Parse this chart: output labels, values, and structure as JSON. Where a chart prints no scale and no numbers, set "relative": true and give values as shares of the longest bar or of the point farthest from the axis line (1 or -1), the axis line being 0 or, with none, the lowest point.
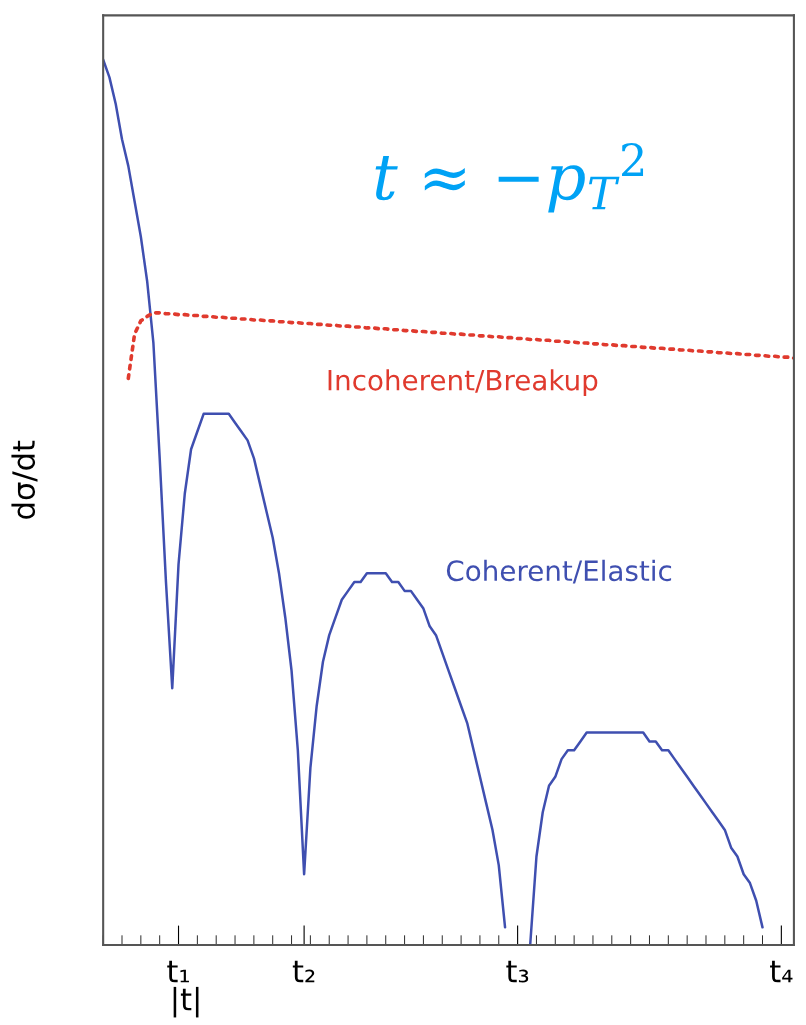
{
  "chart_data": {
    "type": "line",
    "relative": true,
    "xlabel": "|t|",
    "ylabel": "dσ/dt",
    "annotations": [
      "t ≈ −p$_{T}$$^{2}$"
    ],
    "categories": [
      null,
      null,
      null,
      null,
      null,
      null,
      null,
      null,
      null,
      null,
      null,
      null,
      "t₁",
      null,
      null,
      null,
      null,
      null,
      null,
      null,
      null,
      null,
      null,
      null,
      null,
      null,
      null,
      null,
      null,
      null,
      null,
      null,
      "t₂",
      null,
      null,
      null,
      null,
      null,
      null,
      null,
      null,
      null,
      null,
      null,
      null,
      null,
      null,
      null,
      null,
      null,
      null,
      null,
      null,
      null,
      null,
      null,
      null,
      null,
      null,
      null,
      null,
      null,
      null,
      null,
      null,
      null,
      "t₃",
      null,
      null,
      null,
      null,
      null,
      null,
      null,
      null,
      null,
      null,
      null,
      null,
      null,
      null,
      null,
      null,
      null,
      null,
      null,
      null,
      null,
      null,
      null,
      null,
      null,
      null,
      null,
      null,
      null,
      null,
      null,
      null,
      null,
      null,
      null,
      null,
      null,
      null,
      null,
      null,
      null,
      "t₄",
      null,
      null
    ],
    "grid": false,
    "legend": false,
    "marker": "none",
    "series": [
      {
        "name": "Coherent/Elastic",
        "color": "#3f4fb0",
        "line_style": "solid",
        "values": [
          1.0,
          0.98,
          0.95,
          0.91,
          0.88,
          0.84,
          0.8,
          0.75,
          0.68,
          0.55,
          0.41,
          0.29,
          0.43,
          0.51,
          0.56,
          0.58,
          0.6,
          0.6,
          0.6,
          0.6,
          0.6,
          0.59,
          0.58,
          0.57,
          0.55,
          0.52,
          0.49,
          0.46,
          0.42,
          0.37,
          0.31,
          0.22,
          0.08,
          0.2,
          0.27,
          0.32,
          0.35,
          0.37,
          0.39,
          0.4,
          0.41,
          0.41,
          0.42,
          0.42,
          0.42,
          0.42,
          0.41,
          0.41,
          0.4,
          0.4,
          0.39,
          0.38,
          0.36,
          0.35,
          0.33,
          0.31,
          0.29,
          0.27,
          0.25,
          0.22,
          0.19,
          0.16,
          0.13,
          0.09,
          0.02,
          null,
          null,
          null,
          0.0,
          0.1,
          0.15,
          0.18,
          0.19,
          0.21,
          0.22,
          0.22,
          0.23,
          0.24,
          0.24,
          0.24,
          0.24,
          0.24,
          0.24,
          0.24,
          0.24,
          0.24,
          0.24,
          0.23,
          0.23,
          0.22,
          0.22,
          0.21,
          0.2,
          0.19,
          0.18,
          0.17,
          0.16,
          0.15,
          0.14,
          0.13,
          0.11,
          0.1,
          0.08,
          0.07,
          0.05,
          0.02,
          null,
          null,
          null,
          null,
          null
        ]
      },
      {
        "name": "Incoherent/Breakup",
        "color": "#e03a2e",
        "line_style": "dotted",
        "values": [
          null,
          null,
          null,
          null,
          0.64,
          0.69,
          0.705,
          0.71,
          0.714,
          0.714,
          0.713,
          0.713,
          0.712,
          0.712,
          0.711,
          0.711,
          0.71,
          0.71,
          0.709,
          0.709,
          0.708,
          0.708,
          0.707,
          0.707,
          0.706,
          0.706,
          0.705,
          0.705,
          0.704,
          0.704,
          0.703,
          0.703,
          0.702,
          0.702,
          0.701,
          0.701,
          0.7,
          0.7,
          0.699,
          0.699,
          0.698,
          0.698,
          0.697,
          0.697,
          0.696,
          0.696,
          0.695,
          0.695,
          0.694,
          0.694,
          0.693,
          0.693,
          0.692,
          0.692,
          0.691,
          0.691,
          0.69,
          0.69,
          0.689,
          0.689,
          0.688,
          0.688,
          0.687,
          0.687,
          0.686,
          0.686,
          0.685,
          0.685,
          0.684,
          0.684,
          0.683,
          0.683,
          0.682,
          0.682,
          0.681,
          0.681,
          0.68,
          0.68,
          0.679,
          0.679,
          0.678,
          0.678,
          0.677,
          0.677,
          0.676,
          0.676,
          0.675,
          0.675,
          0.674,
          0.674,
          0.673,
          0.673,
          0.672,
          0.672,
          0.671,
          0.671,
          0.67,
          0.67,
          0.669,
          0.669,
          0.668,
          0.668,
          0.667,
          0.667,
          0.666,
          0.666,
          0.665,
          0.665,
          0.664,
          0.664,
          0.663
        ]
      }
    ]
  }
}
